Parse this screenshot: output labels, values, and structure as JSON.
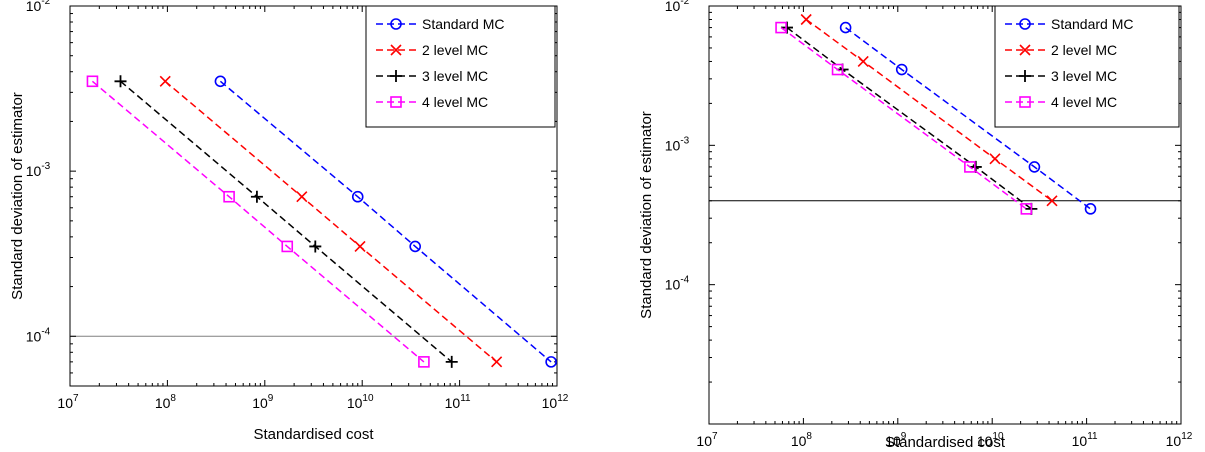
{
  "chart_data": [
    {
      "type": "line",
      "xscale": "log",
      "yscale": "log",
      "xlim": [
        10000000.0,
        1000000000000.0
      ],
      "ylim": [
        5e-05,
        0.01
      ],
      "xlabel": "Standardised cost",
      "ylabel": "Standard deviation of estimator",
      "x_ticks": [
        "7",
        "8",
        "9",
        "10",
        "11",
        "12"
      ],
      "y_ticks": [
        "-4",
        "-3",
        "-2"
      ],
      "tick_base": "10",
      "reference_line": {
        "y": 0.0001,
        "color": "#808080"
      },
      "legend_position": "top-right",
      "series": [
        {
          "name": "Standard MC",
          "color": "#0000ff",
          "marker": "circle",
          "points": [
            [
              350000000.0,
              0.0035
            ],
            [
              9000000000.0,
              0.0007
            ],
            [
              35000000000.0,
              0.00035
            ],
            [
              870000000000.0,
              7e-05
            ]
          ]
        },
        {
          "name": "2 level MC",
          "color": "#ff0000",
          "marker": "x",
          "points": [
            [
              95000000.0,
              0.0035
            ],
            [
              2400000000.0,
              0.0007
            ],
            [
              9500000000.0,
              0.00035
            ],
            [
              240000000000.0,
              7e-05
            ]
          ]
        },
        {
          "name": "3 level MC",
          "color": "#000000",
          "marker": "plus",
          "points": [
            [
              33000000.0,
              0.0035
            ],
            [
              830000000.0,
              0.0007
            ],
            [
              3300000000.0,
              0.00035
            ],
            [
              83000000000.0,
              7e-05
            ]
          ]
        },
        {
          "name": "4 level MC",
          "color": "#ff00ff",
          "marker": "square",
          "points": [
            [
              17000000.0,
              0.0035
            ],
            [
              430000000.0,
              0.0007
            ],
            [
              1700000000.0,
              0.00035
            ],
            [
              43000000000.0,
              7e-05
            ]
          ]
        }
      ]
    },
    {
      "type": "line",
      "xscale": "log",
      "yscale": "log",
      "xlim": [
        10000000.0,
        1000000000000.0
      ],
      "ylim": [
        1e-05,
        0.01
      ],
      "xlabel": "Standardised cost",
      "ylabel": "Standard deviation of estimator",
      "x_ticks": [
        "7",
        "8",
        "9",
        "10",
        "11",
        "12"
      ],
      "y_ticks": [
        "-4",
        "-3",
        "-2"
      ],
      "tick_base": "10",
      "reference_line": {
        "y": 0.0004,
        "color": "#000000"
      },
      "legend_position": "top-right",
      "series": [
        {
          "name": "Standard MC",
          "color": "#0000ff",
          "marker": "circle",
          "points": [
            [
              280000000.0,
              0.007
            ],
            [
              1100000000.0,
              0.0035
            ],
            [
              28000000000.0,
              0.0007
            ],
            [
              110000000000.0,
              0.00035
            ]
          ]
        },
        {
          "name": "2 level MC",
          "color": "#ff0000",
          "marker": "x",
          "points": [
            [
              107000000.0,
              0.008
            ],
            [
              430000000.0,
              0.004
            ],
            [
              10700000000.0,
              0.0008
            ],
            [
              43000000000.0,
              0.0004
            ]
          ]
        },
        {
          "name": "3 level MC",
          "color": "#000000",
          "marker": "plus",
          "points": [
            [
              67000000.0,
              0.007
            ],
            [
              260000000.0,
              0.0035
            ],
            [
              6700000000.0,
              0.0007
            ],
            [
              26000000000.0,
              0.00035
            ]
          ]
        },
        {
          "name": "4 level MC",
          "color": "#ff00ff",
          "marker": "square",
          "points": [
            [
              58000000.0,
              0.007
            ],
            [
              230000000.0,
              0.0035
            ],
            [
              5800000000.0,
              0.0007
            ],
            [
              23000000000.0,
              0.00035
            ]
          ]
        }
      ]
    }
  ]
}
